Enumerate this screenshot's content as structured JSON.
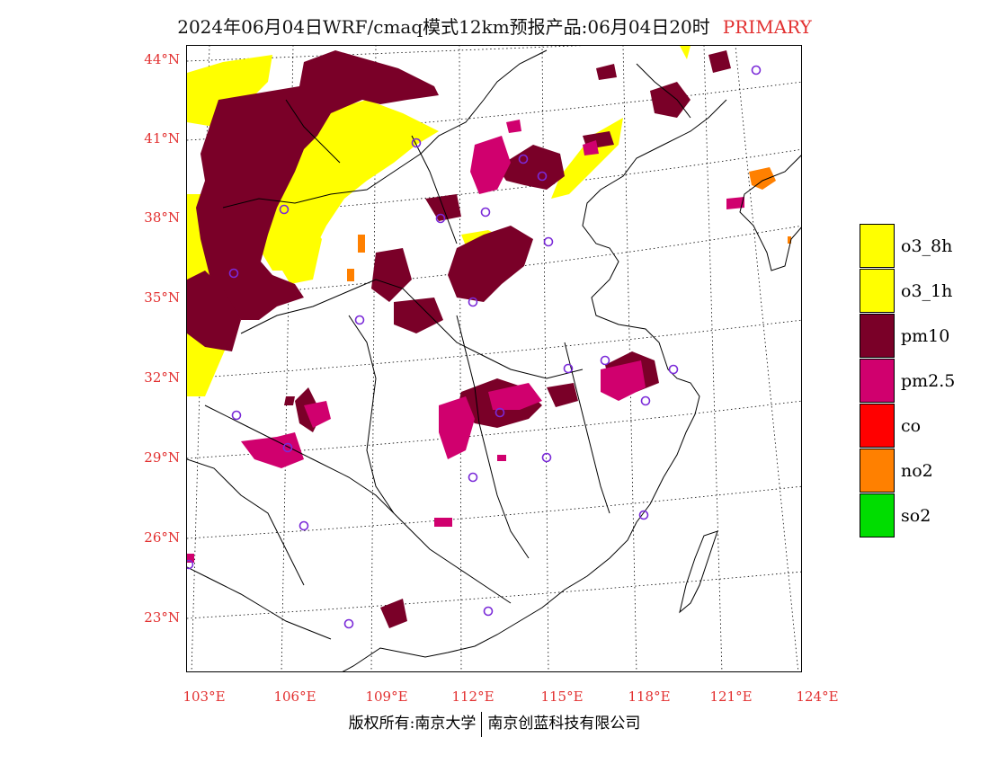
{
  "header": {
    "title": "2024年06月04日WRF/cmaq模式12km预报产品:06月04日20时",
    "tag": "PRIMARY"
  },
  "map": {
    "lat_labels": [
      "44°N",
      "41°N",
      "38°N",
      "35°N",
      "32°N",
      "29°N",
      "26°N",
      "23°N"
    ],
    "lon_labels": [
      "103°E",
      "106°E",
      "109°E",
      "112°E",
      "115°E",
      "118°E",
      "121°E",
      "124°E"
    ]
  },
  "legend": {
    "items": [
      {
        "label": "o3_8h",
        "color": "#ffff00"
      },
      {
        "label": "o3_1h",
        "color": "#ffff00"
      },
      {
        "label": "pm10",
        "color": "#7a0028"
      },
      {
        "label": "pm2.5",
        "color": "#d0006e"
      },
      {
        "label": "co",
        "color": "#ff0000"
      },
      {
        "label": "no2",
        "color": "#ff8000"
      },
      {
        "label": "so2",
        "color": "#00dd00"
      }
    ]
  },
  "colors": {
    "o3": "#ffff00",
    "pm10": "#7a0028",
    "pm25": "#d0006e",
    "no2": "#ff8000",
    "station": "#7a2ad8",
    "axis_label": "#e23030"
  },
  "footer": {
    "left": "版权所有:南京大学",
    "right": "南京创蓝科技有限公司"
  }
}
